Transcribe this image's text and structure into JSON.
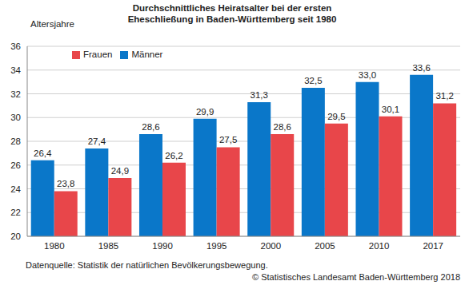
{
  "chart_data": {
    "type": "bar",
    "title": "Durchschnittliches Heiratsalter bei der ersten Eheschließung in Baden-Württemberg seit 1980",
    "y_label": "Altersjahre",
    "categories": [
      "1980",
      "1985",
      "1990",
      "1995",
      "2000",
      "2005",
      "2010",
      "2017"
    ],
    "series": [
      {
        "name": "Männer",
        "color": "#0a77c9",
        "values": [
          26.4,
          27.4,
          28.6,
          29.9,
          31.3,
          32.5,
          33.0,
          33.6
        ],
        "value_labels": [
          "26,4",
          "27,4",
          "28,6",
          "29,9",
          "31,3",
          "32,5",
          "33,0",
          "33,6"
        ]
      },
      {
        "name": "Frauen",
        "color": "#e8464a",
        "values": [
          23.8,
          24.9,
          26.2,
          27.5,
          28.6,
          29.5,
          30.1,
          31.2
        ],
        "value_labels": [
          "23,8",
          "24,9",
          "26,2",
          "27,5",
          "28,6",
          "29,5",
          "30,1",
          "31,2"
        ]
      }
    ],
    "ylim": [
      20,
      36
    ],
    "yticks": [
      20,
      22,
      24,
      26,
      28,
      30,
      32,
      34,
      36
    ],
    "grid": true,
    "legend": "upper left",
    "data_labels": true,
    "annotations": [
      "Datenquelle: Statistik der natürlichen Bevölkerungsbewegung.",
      "© Statistisches Landesamt Baden-Württemberg 2018"
    ]
  }
}
